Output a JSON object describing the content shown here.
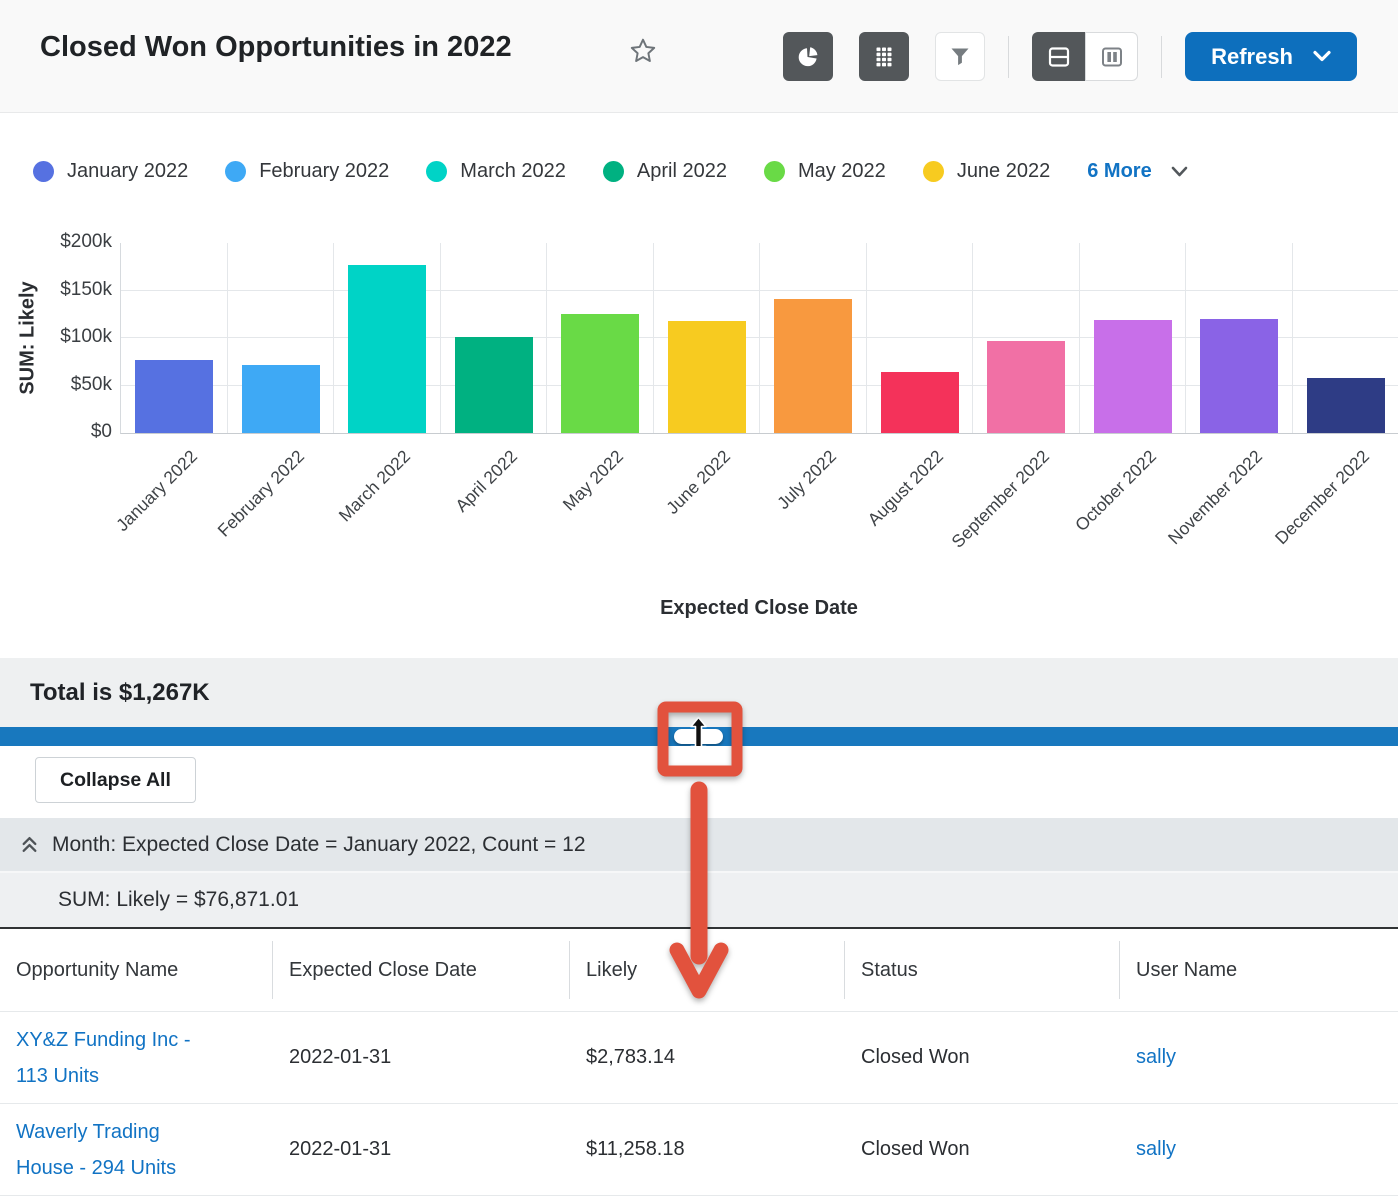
{
  "header": {
    "title": "Closed Won Opportunities in 2022",
    "refresh_label": "Refresh",
    "accent_color": "#0d6fbd"
  },
  "legend": {
    "items": [
      {
        "label": "January 2022",
        "color": "#5671e1"
      },
      {
        "label": "February 2022",
        "color": "#3ea9f5"
      },
      {
        "label": "March 2022",
        "color": "#00d3c6"
      },
      {
        "label": "April 2022",
        "color": "#00b181"
      },
      {
        "label": "May 2022",
        "color": "#69da46"
      },
      {
        "label": "June 2022",
        "color": "#f7cb20"
      }
    ],
    "more_label": "6 More"
  },
  "chart_data": {
    "type": "bar",
    "title": "",
    "xlabel": "Expected Close Date",
    "ylabel": "SUM: Likely",
    "ylim": [
      0,
      200000
    ],
    "ytick_labels": [
      "$0",
      "$50k",
      "$100k",
      "$150k",
      "$200k"
    ],
    "grid": true,
    "legend_position": "top",
    "categories": [
      "January 2022",
      "February 2022",
      "March 2022",
      "April 2022",
      "May 2022",
      "June 2022",
      "July 2022",
      "August 2022",
      "September 2022",
      "October 2022",
      "November 2022",
      "December 2022"
    ],
    "values": [
      76871,
      71400,
      176500,
      101000,
      125000,
      118000,
      141000,
      63800,
      96600,
      119000,
      119500,
      58200
    ],
    "colors": [
      "#5671e1",
      "#3ea9f5",
      "#00d3c6",
      "#00b181",
      "#69da46",
      "#f7cb20",
      "#f8993f",
      "#f4325a",
      "#f170a5",
      "#c86fe9",
      "#8a63e6",
      "#2e3c85"
    ]
  },
  "summary": {
    "total_text": "Total is $1,267K"
  },
  "divider": {
    "color": "#1878be"
  },
  "grid_panel": {
    "collapse_all_label": "Collapse All",
    "group_header": "Month: Expected Close Date = January 2022, Count = 12",
    "group_sum": "SUM: Likely = $76,871.01"
  },
  "table": {
    "columns": [
      "Opportunity Name",
      "Expected Close Date",
      "Likely",
      "Status",
      "User Name"
    ],
    "rows": [
      {
        "name": "XY&Z Funding Inc - 113 Units",
        "close_date": "2022-01-31",
        "likely": "$2,783.14",
        "status": "Closed Won",
        "user": "sally"
      },
      {
        "name": "Waverly Trading House - 294 Units",
        "close_date": "2022-01-31",
        "likely": "$11,258.18",
        "status": "Closed Won",
        "user": "sally"
      }
    ]
  },
  "links": {
    "color": "#1173c4"
  },
  "annotation": {
    "color": "#e2523d"
  }
}
